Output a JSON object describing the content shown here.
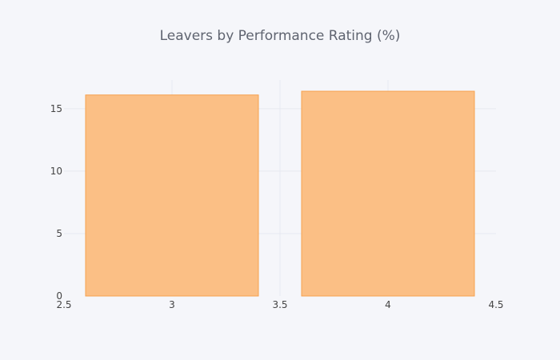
{
  "chart_data": {
    "type": "bar",
    "title": "Leavers by Performance Rating (%)",
    "xlabel": "",
    "ylabel": "",
    "x": [
      3,
      4
    ],
    "values": [
      16.1,
      16.4
    ],
    "bar_width": 0.8,
    "xlim": [
      2.5,
      4.5
    ],
    "ylim": [
      0,
      17.3
    ],
    "xticks": [
      2.5,
      3,
      3.5,
      4,
      4.5
    ],
    "xtick_labels": [
      "2.5",
      "3",
      "3.5",
      "4",
      "4.5"
    ],
    "yticks": [
      0,
      5,
      10,
      15
    ],
    "ytick_labels": [
      "0",
      "5",
      "10",
      "15"
    ],
    "grid": true,
    "colors": {
      "bar_fill": "#fbbf85",
      "bar_stroke": "#f6a14f",
      "background": "#f5f6fa",
      "grid": "#e6e9f1"
    }
  }
}
